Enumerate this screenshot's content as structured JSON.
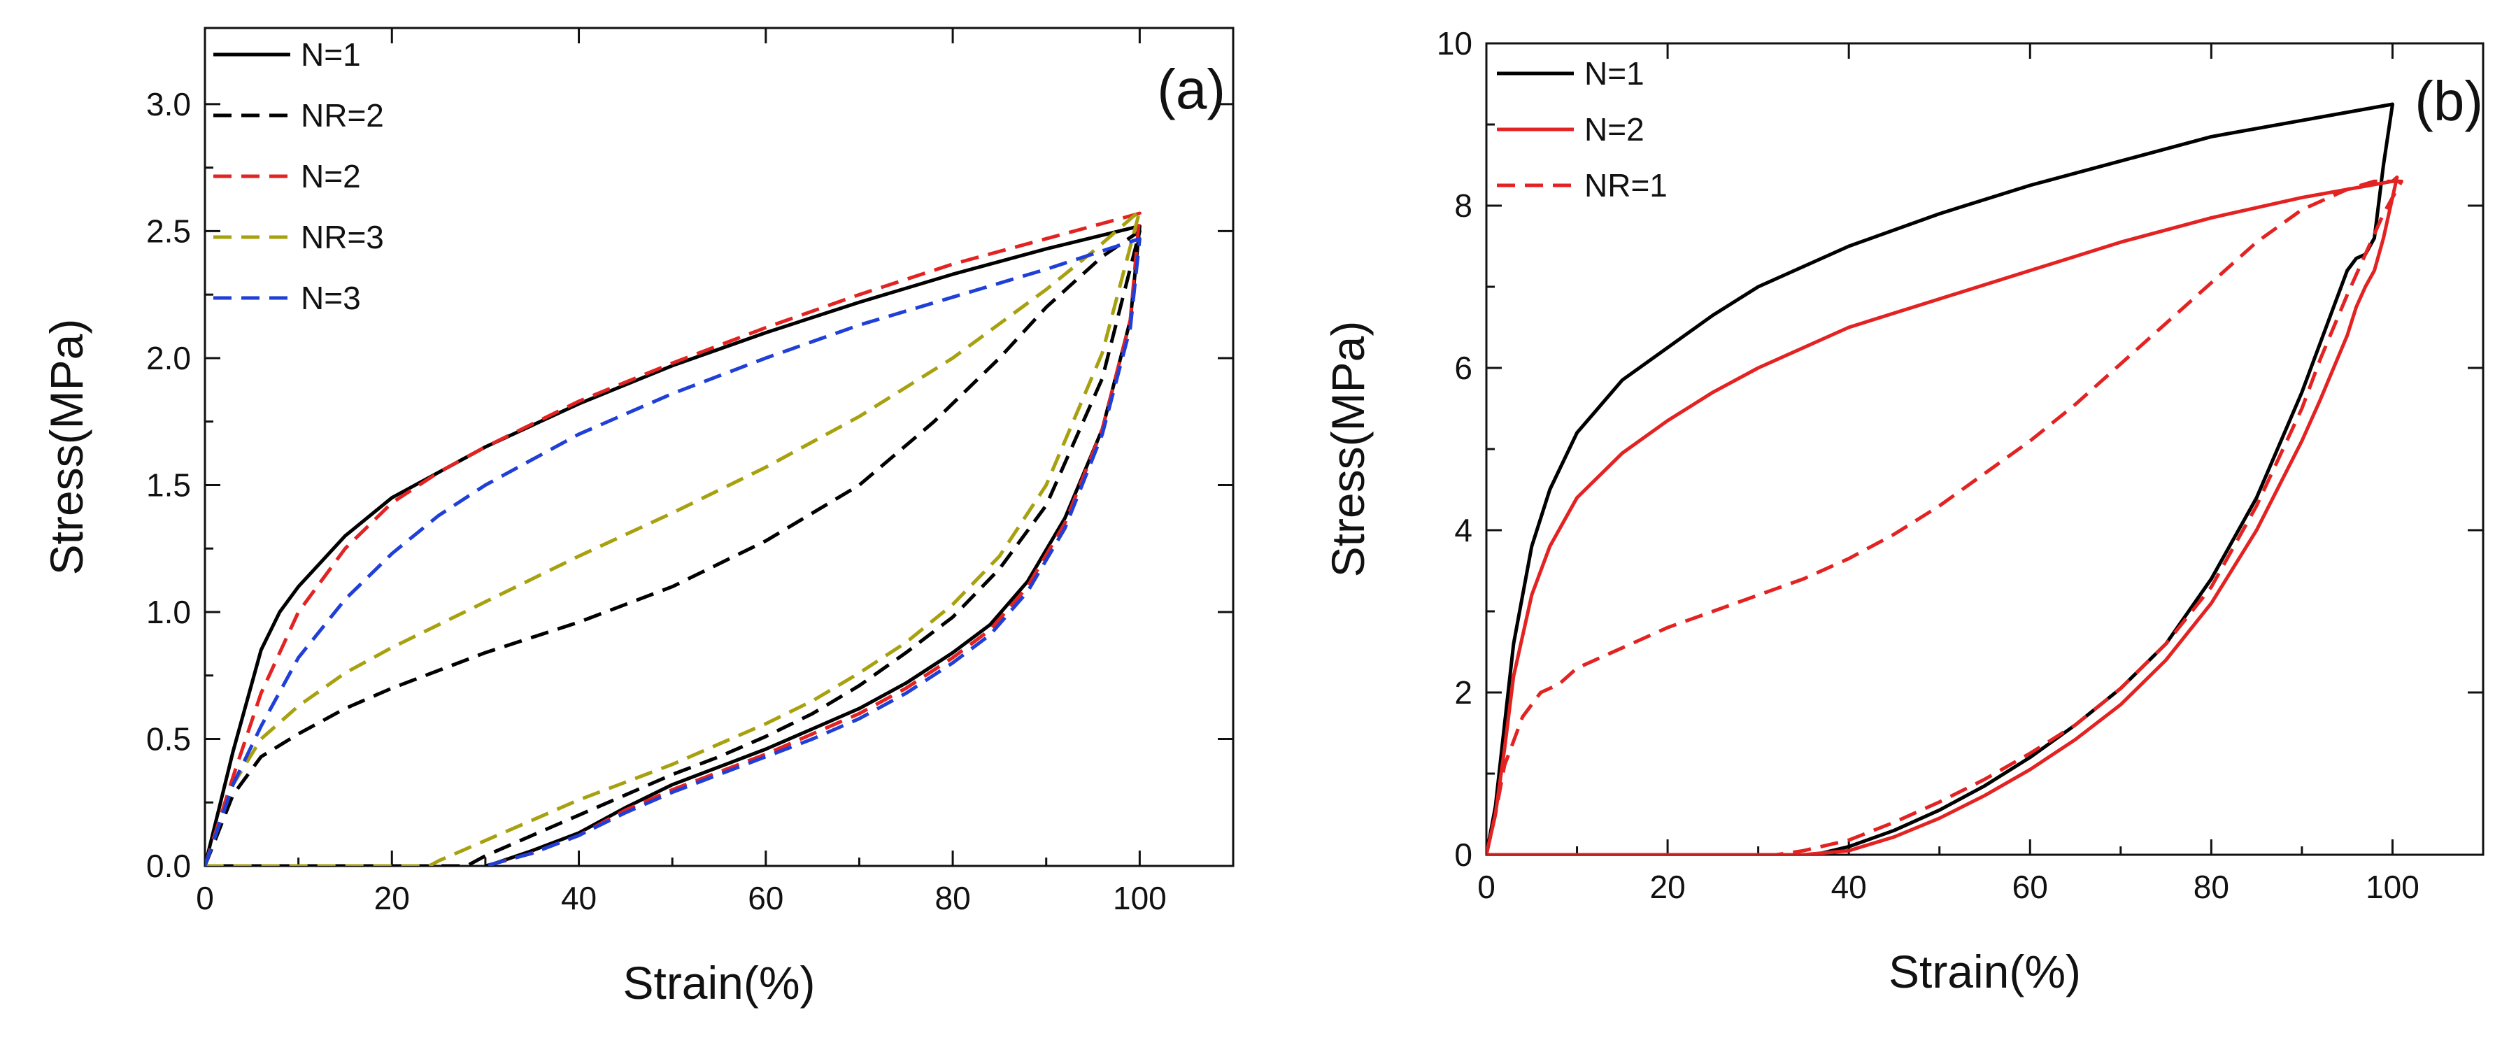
{
  "chart_data": [
    {
      "type": "line",
      "panel_label": "(a)",
      "xlabel": "Strain(%)",
      "ylabel": "Stress(MPa)",
      "xlim": [
        0,
        110
      ],
      "ylim": [
        0,
        3.3
      ],
      "xticks": [
        0,
        20,
        40,
        60,
        80,
        100
      ],
      "xtick_labels": [
        "0",
        "20",
        "40",
        "60",
        "80",
        "100"
      ],
      "yticks": [
        0,
        0.5,
        1.0,
        1.5,
        2.0,
        2.5,
        3.0
      ],
      "ytick_labels": [
        "0.0",
        "0.5",
        "1.0",
        "1.5",
        "2.0",
        "2.5",
        "3.0"
      ],
      "grid": false,
      "legend_position": "top-left",
      "series": [
        {
          "name": "N=1",
          "color": "#000000",
          "dash": "solid",
          "x": [
            0,
            3,
            6,
            8,
            10,
            15,
            20,
            25,
            30,
            40,
            50,
            60,
            70,
            80,
            90,
            100,
            99,
            96,
            92,
            88,
            84,
            80,
            75,
            70,
            65,
            60,
            55,
            50,
            45,
            40,
            35,
            31,
            30
          ],
          "y": [
            0,
            0.45,
            0.85,
            1.0,
            1.1,
            1.3,
            1.45,
            1.55,
            1.65,
            1.82,
            1.97,
            2.1,
            2.22,
            2.33,
            2.43,
            2.52,
            2.15,
            1.72,
            1.37,
            1.12,
            0.95,
            0.84,
            0.72,
            0.62,
            0.54,
            0.46,
            0.39,
            0.32,
            0.23,
            0.13,
            0.06,
            0.01,
            0
          ]
        },
        {
          "name": "NR=2",
          "color": "#000000",
          "dash": "dashed",
          "x": [
            0,
            3,
            6,
            10,
            15,
            20,
            25,
            30,
            40,
            50,
            60,
            70,
            78,
            85,
            90,
            96,
            100,
            96,
            90,
            85,
            80,
            75,
            70,
            65,
            60,
            55,
            50,
            45,
            40,
            35,
            30,
            28,
            0
          ],
          "y": [
            0,
            0.28,
            0.43,
            0.52,
            0.62,
            0.7,
            0.77,
            0.84,
            0.96,
            1.1,
            1.28,
            1.5,
            1.75,
            2.0,
            2.2,
            2.4,
            2.5,
            1.92,
            1.42,
            1.17,
            0.98,
            0.84,
            0.71,
            0.6,
            0.51,
            0.43,
            0.36,
            0.28,
            0.2,
            0.12,
            0.04,
            0,
            0
          ]
        },
        {
          "name": "N=2",
          "color": "#e32222",
          "dash": "dashed",
          "x": [
            0,
            3,
            6,
            10,
            15,
            20,
            25,
            30,
            40,
            50,
            60,
            70,
            80,
            90,
            100,
            99,
            96,
            92,
            88,
            84,
            80,
            75,
            70,
            65,
            60,
            55,
            50,
            45,
            40,
            35,
            31,
            30
          ],
          "y": [
            0,
            0.35,
            0.68,
            1.0,
            1.25,
            1.43,
            1.55,
            1.65,
            1.83,
            1.98,
            2.12,
            2.25,
            2.37,
            2.47,
            2.57,
            2.15,
            1.72,
            1.35,
            1.1,
            0.93,
            0.82,
            0.7,
            0.6,
            0.52,
            0.44,
            0.37,
            0.3,
            0.22,
            0.12,
            0.05,
            0.01,
            0
          ]
        },
        {
          "name": "NR=3",
          "color": "#a8a10f",
          "dash": "dashed",
          "x": [
            0,
            3,
            6,
            10,
            15,
            20,
            25,
            30,
            40,
            50,
            60,
            70,
            80,
            90,
            95,
            100,
            96,
            90,
            85,
            80,
            75,
            70,
            65,
            60,
            55,
            50,
            45,
            40,
            35,
            30,
            25,
            24,
            0
          ],
          "y": [
            0,
            0.32,
            0.5,
            0.63,
            0.76,
            0.86,
            0.95,
            1.04,
            1.22,
            1.39,
            1.57,
            1.77,
            2.0,
            2.27,
            2.42,
            2.58,
            2.02,
            1.5,
            1.22,
            1.03,
            0.88,
            0.76,
            0.65,
            0.56,
            0.48,
            0.4,
            0.33,
            0.26,
            0.18,
            0.1,
            0.02,
            0,
            0
          ]
        },
        {
          "name": "N=3",
          "color": "#1f3fd6",
          "dash": "dashed",
          "x": [
            0,
            3,
            6,
            10,
            15,
            20,
            25,
            30,
            40,
            50,
            60,
            70,
            80,
            90,
            100,
            99,
            96,
            92,
            88,
            84,
            80,
            75,
            70,
            65,
            60,
            55,
            50,
            45,
            40,
            35,
            31,
            30
          ],
          "y": [
            0,
            0.32,
            0.55,
            0.82,
            1.05,
            1.23,
            1.38,
            1.5,
            1.7,
            1.86,
            2.0,
            2.13,
            2.24,
            2.35,
            2.47,
            2.12,
            1.7,
            1.33,
            1.08,
            0.91,
            0.8,
            0.68,
            0.58,
            0.5,
            0.43,
            0.36,
            0.29,
            0.21,
            0.12,
            0.05,
            0.01,
            0
          ]
        }
      ]
    },
    {
      "type": "line",
      "panel_label": "(b)",
      "xlabel": "Strain(%)",
      "ylabel": "Stress(MPa)",
      "xlim": [
        0,
        110
      ],
      "ylim": [
        0,
        10
      ],
      "xticks": [
        0,
        20,
        40,
        60,
        80,
        100
      ],
      "xtick_labels": [
        "0",
        "20",
        "40",
        "60",
        "80",
        "100"
      ],
      "yticks": [
        0,
        2,
        4,
        6,
        8,
        10
      ],
      "ytick_labels": [
        "0",
        "2",
        "4",
        "6",
        "8",
        "10"
      ],
      "grid": false,
      "legend_position": "top-left",
      "series": [
        {
          "name": "N=1",
          "color": "#000000",
          "dash": "solid",
          "x": [
            0,
            1,
            2,
            3,
            5,
            7,
            10,
            15,
            20,
            25,
            30,
            40,
            50,
            60,
            70,
            80,
            90,
            100,
            99,
            98,
            97,
            96,
            95,
            94,
            92,
            90,
            85,
            80,
            75,
            70,
            65,
            60,
            55,
            50,
            45,
            40,
            37,
            36
          ],
          "y": [
            0,
            0.6,
            1.6,
            2.6,
            3.8,
            4.5,
            5.2,
            5.85,
            6.25,
            6.65,
            7.0,
            7.5,
            7.9,
            8.25,
            8.55,
            8.85,
            9.05,
            9.25,
            8.5,
            7.6,
            7.4,
            7.35,
            7.2,
            6.9,
            6.3,
            5.7,
            4.4,
            3.4,
            2.6,
            2.05,
            1.6,
            1.2,
            0.85,
            0.55,
            0.3,
            0.1,
            0.02,
            0
          ]
        },
        {
          "name": "N=2",
          "color": "#e32222",
          "dash": "solid",
          "x": [
            0,
            1,
            2,
            3,
            5,
            7,
            10,
            15,
            20,
            25,
            30,
            40,
            50,
            60,
            70,
            80,
            90,
            100,
            100.5,
            99,
            98,
            97,
            96,
            95,
            92,
            90,
            85,
            80,
            75,
            70,
            65,
            60,
            55,
            50,
            45,
            40,
            36,
            35,
            0
          ],
          "y": [
            0,
            0.5,
            1.3,
            2.2,
            3.2,
            3.8,
            4.4,
            4.95,
            5.35,
            5.7,
            6.0,
            6.5,
            6.85,
            7.2,
            7.55,
            7.85,
            8.1,
            8.3,
            8.35,
            7.6,
            7.2,
            7.0,
            6.75,
            6.4,
            5.6,
            5.1,
            4.0,
            3.1,
            2.4,
            1.85,
            1.42,
            1.05,
            0.73,
            0.45,
            0.22,
            0.05,
            0.01,
            0,
            0
          ]
        },
        {
          "name": "NR=1",
          "color": "#e32222",
          "dash": "dashed",
          "x": [
            0,
            1,
            2,
            4,
            6,
            8,
            10,
            15,
            20,
            25,
            30,
            35,
            40,
            45,
            50,
            55,
            60,
            65,
            70,
            75,
            80,
            85,
            90,
            95,
            98,
            100,
            101,
            99,
            97,
            95,
            92,
            90,
            85,
            80,
            75,
            70,
            65,
            60,
            55,
            50,
            45,
            40,
            35,
            32,
            0
          ],
          "y": [
            0,
            0.5,
            1.1,
            1.7,
            2.0,
            2.1,
            2.3,
            2.55,
            2.8,
            3.0,
            3.2,
            3.4,
            3.65,
            3.95,
            4.3,
            4.7,
            5.1,
            5.55,
            6.05,
            6.55,
            7.05,
            7.55,
            7.95,
            8.2,
            8.3,
            8.3,
            8.3,
            7.9,
            7.4,
            6.9,
            6.1,
            5.5,
            4.3,
            3.3,
            2.6,
            2.05,
            1.6,
            1.25,
            0.93,
            0.65,
            0.4,
            0.18,
            0.05,
            0,
            0
          ]
        }
      ]
    }
  ]
}
